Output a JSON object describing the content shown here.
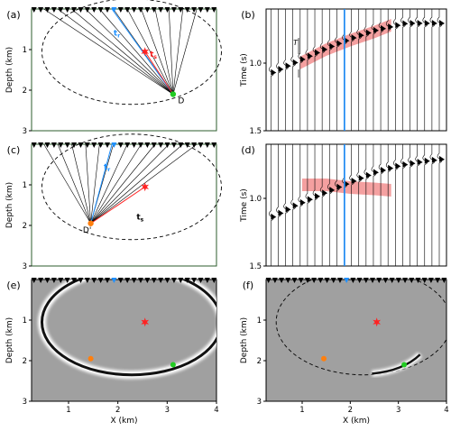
{
  "chart_data": [
    {
      "id": "a",
      "panel_label": "(a)",
      "type": "ray-diagram",
      "xlim": [
        0.25,
        4.0
      ],
      "ylim": [
        3,
        0
      ],
      "grid": false,
      "ylabel": "Depth (km)",
      "xlabel": "",
      "yticks": [
        "1",
        "2",
        "3"
      ],
      "source": {
        "x": 3.12,
        "z": 2.1,
        "label": "D",
        "color": "#22cc22"
      },
      "scatterer": {
        "x": 2.55,
        "z": 1.05,
        "color": "#ff2222"
      },
      "highlight_receiver_x": 1.88,
      "annotations": [
        "t",
        "r",
        "t",
        "s"
      ]
    },
    {
      "id": "b",
      "panel_label": "(b)",
      "type": "seismic-traces",
      "xlim": [
        0.25,
        4.0
      ],
      "ylim": [
        1.5,
        0.6
      ],
      "ylabel": "Time (s)",
      "yticks": [
        "1.0",
        "1.5"
      ],
      "highlight_trace_x": 1.88,
      "arrival_curve": [
        [
          0.25,
          1.08
        ],
        [
          1.0,
          0.96
        ],
        [
          1.5,
          0.88
        ],
        [
          2.0,
          0.81
        ],
        [
          2.5,
          0.75
        ],
        [
          3.12,
          0.7
        ],
        [
          3.5,
          0.7
        ],
        [
          4.0,
          0.7
        ]
      ],
      "window_curve": [
        [
          0.95,
          1.0
        ],
        [
          1.5,
          0.9
        ],
        [
          2.0,
          0.83
        ],
        [
          2.5,
          0.77
        ],
        [
          2.85,
          0.72
        ]
      ],
      "window_label": "T",
      "window_color": "#f08080"
    },
    {
      "id": "c",
      "panel_label": "(c)",
      "type": "ray-diagram",
      "xlim": [
        0.25,
        4.0
      ],
      "ylim": [
        3,
        0
      ],
      "ylabel": "Depth (km)",
      "yticks": [
        "1",
        "2",
        "3"
      ],
      "source": {
        "x": 1.45,
        "z": 1.95,
        "label": "D'",
        "color": "#ff7f0e"
      },
      "scatterer": {
        "x": 2.55,
        "z": 1.05,
        "color": "#ff2222"
      },
      "highlight_receiver_x": 1.88,
      "annotations": [
        "t",
        "r",
        "t",
        "s"
      ]
    },
    {
      "id": "d",
      "panel_label": "(d)",
      "type": "seismic-traces",
      "xlim": [
        0.25,
        4.0
      ],
      "ylim": [
        1.5,
        0.6
      ],
      "ylabel": "Time (s)",
      "yticks": [
        "1.0",
        "1.5"
      ],
      "highlight_trace_x": 1.88,
      "arrival_curve": [
        [
          0.25,
          1.15
        ],
        [
          0.8,
          1.05
        ],
        [
          1.45,
          0.95
        ],
        [
          2.0,
          0.87
        ],
        [
          2.5,
          0.8
        ],
        [
          3.0,
          0.75
        ],
        [
          3.5,
          0.72
        ],
        [
          4.0,
          0.7
        ]
      ],
      "window_curve": [
        [
          1.0,
          0.9
        ],
        [
          1.5,
          0.9
        ],
        [
          2.0,
          0.92
        ],
        [
          2.5,
          0.93
        ],
        [
          2.85,
          0.94
        ]
      ],
      "window_color": "#f08080"
    },
    {
      "id": "e",
      "panel_label": "(e)",
      "type": "image-with-ellipse",
      "xlim": [
        0.25,
        4.0
      ],
      "ylim": [
        3,
        0
      ],
      "xlabel": "X (km)",
      "ylabel": "Depth (km)",
      "xticks": [
        "1",
        "2",
        "3",
        "4"
      ],
      "yticks": [
        "1",
        "2",
        "3"
      ],
      "scatterer": {
        "x": 2.55,
        "z": 1.05
      },
      "points": [
        {
          "x": 1.45,
          "z": 1.95,
          "color": "#ff7f0e"
        },
        {
          "x": 3.12,
          "z": 2.1,
          "color": "#22cc22"
        }
      ]
    },
    {
      "id": "f",
      "panel_label": "(f)",
      "type": "image-with-ellipse",
      "xlim": [
        0.25,
        4.0
      ],
      "ylim": [
        3,
        0
      ],
      "xlabel": "X (km)",
      "ylabel": "Depth (km)",
      "xticks": [
        "1",
        "2",
        "3",
        "4"
      ],
      "yticks": [
        "1",
        "2",
        "3"
      ],
      "scatterer": {
        "x": 2.55,
        "z": 1.05
      },
      "points": [
        {
          "x": 1.45,
          "z": 1.95,
          "color": "#ff7f0e"
        },
        {
          "x": 3.12,
          "z": 2.1,
          "color": "#22cc22"
        }
      ]
    }
  ],
  "colors": {
    "frame": "#2e5e2e",
    "ray": "#000000",
    "highlight": "#1e90ff",
    "star": "#ff2222",
    "gray_bg": "#a0a0a0"
  }
}
